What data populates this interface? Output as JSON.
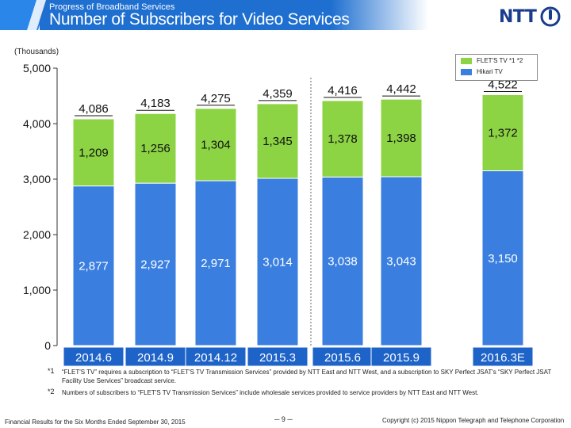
{
  "header": {
    "subtitle": "Progress of Broadband Services",
    "title": "Number of Subscribers for Video Services"
  },
  "logo": {
    "text": "NTT"
  },
  "chart_data": {
    "type": "bar",
    "stacked": true,
    "units_label": "(Thousands)",
    "categories": [
      "2014.6",
      "2014.9",
      "2014.12",
      "2015.3",
      "2015.6",
      "2015.9",
      "2016.3E"
    ],
    "series": [
      {
        "name": "Hikari TV",
        "values": [
          2877,
          2927,
          2971,
          3014,
          3038,
          3043,
          3150
        ],
        "labels": [
          "2,877",
          "2,927",
          "2,971",
          "3,014",
          "3,038",
          "3,043",
          "3,150"
        ],
        "color": "#3a7fe0"
      },
      {
        "name": "FLET'S TV *1 *2",
        "values": [
          1209,
          1256,
          1304,
          1345,
          1378,
          1398,
          1372
        ],
        "labels": [
          "1,209",
          "1,256",
          "1,304",
          "1,345",
          "1,378",
          "1,398",
          "1,372"
        ],
        "color": "#8dd444"
      }
    ],
    "totals": [
      "4,086",
      "4,183",
      "4,275",
      "4,359",
      "4,416",
      "4,442",
      "4,522"
    ],
    "ylim": [
      0,
      5000
    ],
    "yticks": [
      "0",
      "1,000",
      "2,000",
      "3,000",
      "4,000",
      "5,000"
    ],
    "ytick_values": [
      0,
      1000,
      2000,
      3000,
      4000,
      5000
    ],
    "grid": false,
    "legend_position": "top-right",
    "category_label_bg": "#1e63c8"
  },
  "notes": [
    {
      "mark": "*1",
      "text": "“FLET'S TV” requires a subscription to “FLET'S TV Transmission Services” provided by NTT East and NTT West, and a subscription to SKY Perfect JSAT's “SKY Perfect JSAT Facility Use Services” broadcast service."
    },
    {
      "mark": "*2",
      "text": "Numbers of subscribers to “FLET'S TV Transmission Services” include wholesale services provided to service providers by NTT East and NTT West."
    }
  ],
  "footer": {
    "left": "Financial Results for the Six Months Ended September 30, 2015",
    "page": "─ 9 ─",
    "right": "Copyright (c) 2015  Nippon Telegraph and Telephone Corporation"
  }
}
